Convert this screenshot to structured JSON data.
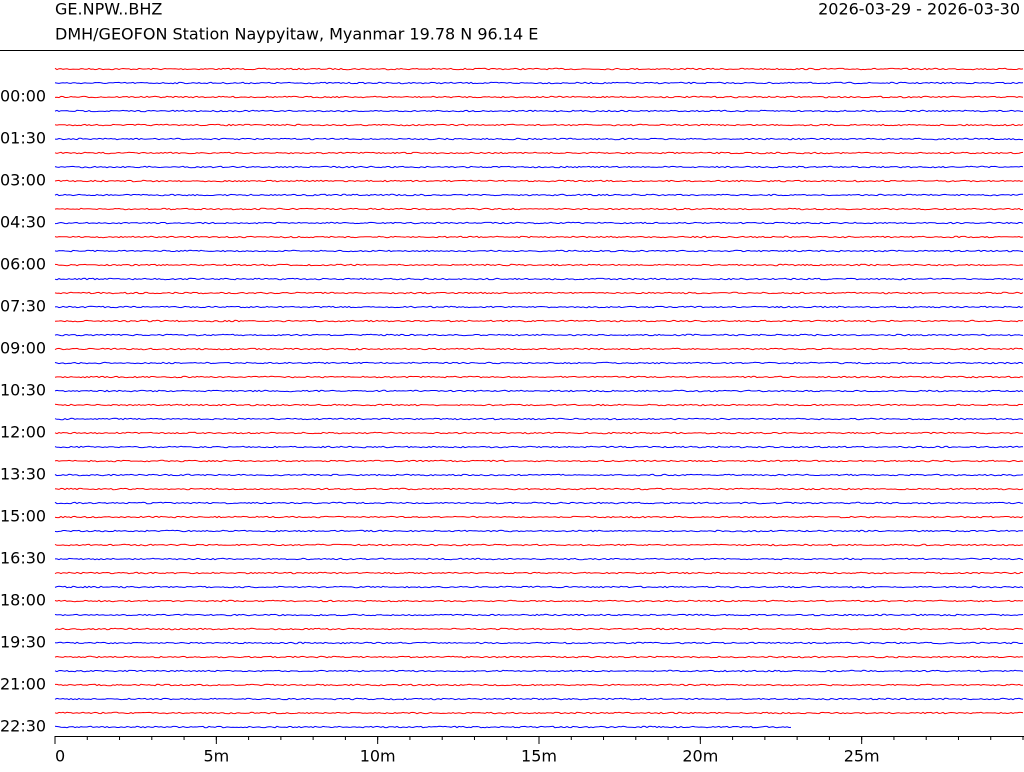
{
  "chart_data": {
    "type": "helicorder",
    "title": "GE.NPW..BHZ",
    "subtitle": "DMH/GEOFON Station Naypyitaw, Myanmar  19.78 N 96.14 E",
    "date_range": "2026-03-29 - 2026-03-30",
    "categories": [
      null,
      null,
      "00:00",
      null,
      null,
      "01:30",
      null,
      null,
      "03:00",
      null,
      null,
      "04:30",
      null,
      null,
      "06:00",
      null,
      null,
      "07:30",
      null,
      null,
      "09:00",
      null,
      null,
      "10:30",
      null,
      null,
      "12:00",
      null,
      null,
      "13:30",
      null,
      null,
      "15:00",
      null,
      null,
      "16:30",
      null,
      null,
      "18:00",
      null,
      null,
      "19:30",
      null,
      null,
      "21:00",
      null,
      null,
      "22:30"
    ],
    "trace_colors": [
      "#ff0000",
      "#0000ff"
    ],
    "xlim": [
      0,
      30
    ],
    "xticks": [
      0,
      {
        "value": 5,
        "label": "5m"
      },
      {
        "value": 10,
        "label": "10m"
      },
      {
        "value": 15,
        "label": "15m"
      },
      {
        "value": 20,
        "label": "20m"
      },
      {
        "value": 25,
        "label": "25m"
      }
    ]
  }
}
